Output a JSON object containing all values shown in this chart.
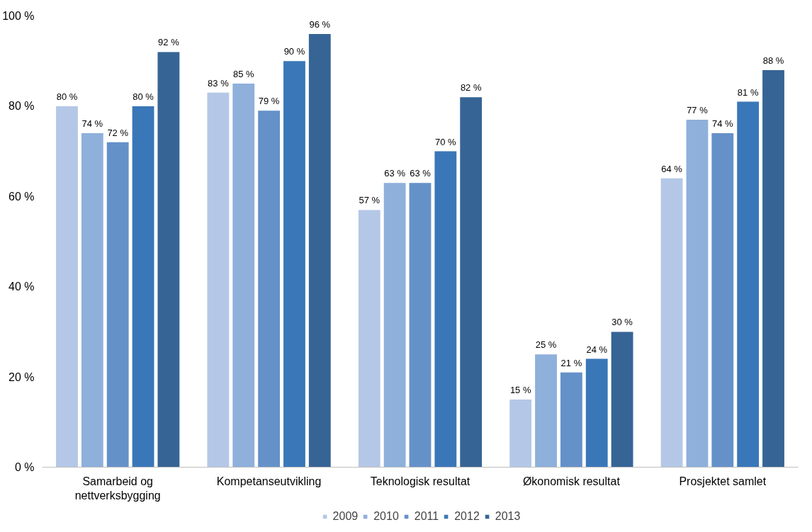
{
  "chart_data": {
    "type": "bar",
    "categories": [
      "Samarbeid og\nnettverksbygging",
      "Kompetanseutvikling",
      "Teknologisk resultat",
      "Økonomisk resultat",
      "Prosjektet samlet"
    ],
    "series": [
      {
        "name": "2009",
        "color": "#b4c7e7",
        "values": [
          80,
          83,
          57,
          15,
          64
        ],
        "value_labels": [
          "80 %",
          "83 %",
          "57 %",
          "15 %",
          "64 %"
        ]
      },
      {
        "name": "2010",
        "color": "#8eb0db",
        "values": [
          74,
          85,
          63,
          25,
          77
        ],
        "value_labels": [
          "74 %",
          "85 %",
          "63 %",
          "25 %",
          "77 %"
        ]
      },
      {
        "name": "2011",
        "color": "#6591c9",
        "values": [
          72,
          79,
          63,
          21,
          74
        ],
        "value_labels": [
          "72 %",
          "79 %",
          "63 %",
          "21 %",
          "74 %"
        ]
      },
      {
        "name": "2012",
        "color": "#3a77b8",
        "values": [
          80,
          90,
          70,
          24,
          81
        ],
        "value_labels": [
          "80 %",
          "90 %",
          "70 %",
          "24 %",
          "81 %"
        ]
      },
      {
        "name": "2013",
        "color": "#366495",
        "values": [
          92,
          96,
          82,
          30,
          88
        ],
        "value_labels": [
          "92 %",
          "96 %",
          "82 %",
          "30 %",
          "88 %"
        ]
      }
    ],
    "ylim": [
      0,
      100
    ],
    "yticks": [
      {
        "value": 0,
        "label": "0 %"
      },
      {
        "value": 20,
        "label": "20 %"
      },
      {
        "value": 40,
        "label": "40 %"
      },
      {
        "value": 60,
        "label": "60 %"
      },
      {
        "value": 80,
        "label": "80 %"
      },
      {
        "value": 100,
        "label": "100 %"
      }
    ],
    "grid": false,
    "legend": "bottom"
  }
}
